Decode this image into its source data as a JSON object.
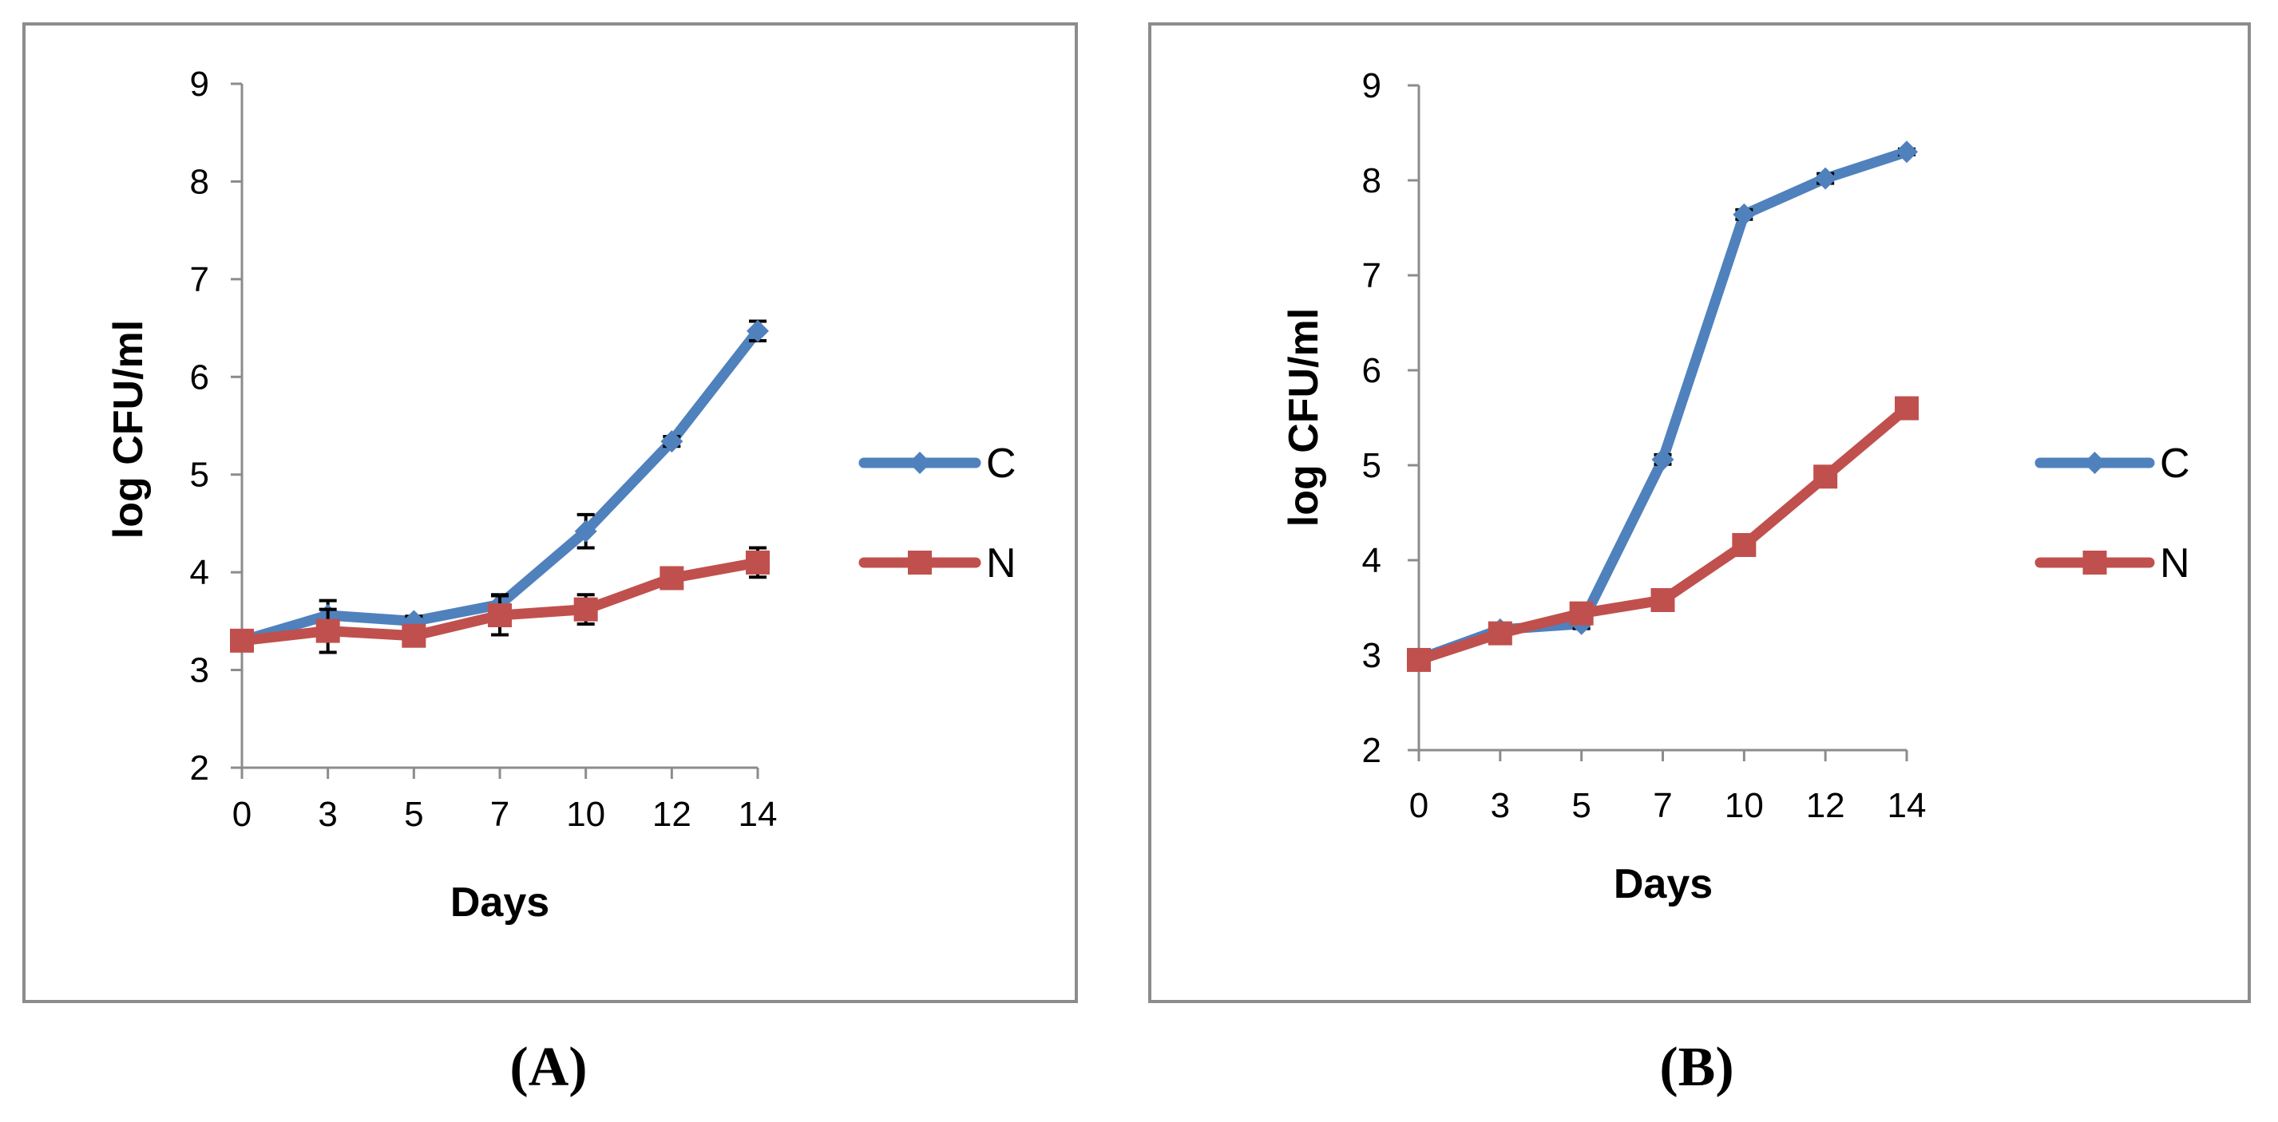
{
  "chart_data": [
    {
      "type": "line",
      "panel_label": "(A)",
      "xlabel": "Days",
      "ylabel": "log CFU/ml",
      "categories": [
        "0",
        "3",
        "5",
        "7",
        "10",
        "12",
        "14"
      ],
      "ylim": [
        2,
        9
      ],
      "yticks": [
        "2",
        "3",
        "4",
        "5",
        "6",
        "7",
        "8",
        "9"
      ],
      "legend_position": "right",
      "series": [
        {
          "name": "C",
          "color": "#4F81BD",
          "marker": "diamond",
          "values": [
            3.3,
            3.56,
            3.5,
            3.67,
            4.42,
            5.34,
            6.47
          ],
          "errors": [
            0.05,
            0.15,
            0.05,
            0.1,
            0.17,
            0.05,
            0.1
          ]
        },
        {
          "name": "N",
          "color": "#C0504D",
          "marker": "square",
          "values": [
            3.3,
            3.4,
            3.35,
            3.56,
            3.62,
            3.94,
            4.1
          ],
          "errors": [
            0.05,
            0.22,
            0.07,
            0.2,
            0.15,
            0.05,
            0.15
          ]
        }
      ]
    },
    {
      "type": "line",
      "panel_label": "(B)",
      "xlabel": "Days",
      "ylabel": "log CFU/ml",
      "categories": [
        "0",
        "3",
        "5",
        "7",
        "10",
        "12",
        "14"
      ],
      "ylim": [
        2,
        9
      ],
      "yticks": [
        "2",
        "3",
        "4",
        "5",
        "6",
        "7",
        "8",
        "9"
      ],
      "legend_position": "right",
      "series": [
        {
          "name": "C",
          "color": "#4F81BD",
          "marker": "diamond",
          "values": [
            2.96,
            3.27,
            3.33,
            5.06,
            7.64,
            8.02,
            8.3
          ],
          "errors": [
            0.04,
            0.05,
            0.05,
            0.05,
            0.05,
            0.05,
            0.03
          ]
        },
        {
          "name": "N",
          "color": "#C0504D",
          "marker": "square",
          "values": [
            2.95,
            3.23,
            3.44,
            3.58,
            4.16,
            4.88,
            5.6
          ],
          "errors": [
            0.03,
            0.05,
            0.05,
            0.05,
            0.05,
            0.05,
            0.05
          ]
        }
      ]
    }
  ]
}
